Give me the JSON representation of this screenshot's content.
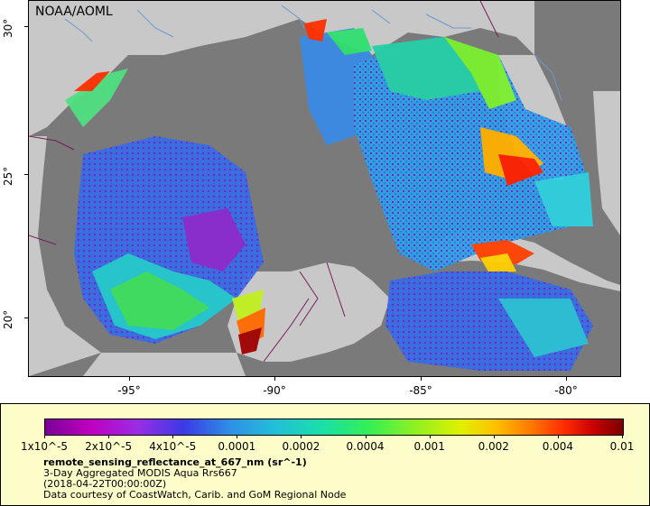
{
  "map": {
    "watermark": "NOAA/AOML",
    "lat_ticks": [
      "30°",
      "25°",
      "20°"
    ],
    "lon_ticks": [
      "-95°",
      "-90°",
      "-85°",
      "-80°"
    ],
    "colors": {
      "land": "#c8c8c8",
      "no_data": "#7a7a7a",
      "border": "#7a1a5a",
      "river": "#6a9ad0"
    }
  },
  "legend": {
    "colorbar_ticks": [
      "1x10^-5",
      "2x10^-5",
      "4x10^-5",
      "0.0001",
      "0.0002",
      "0.0004",
      "0.001",
      "0.002",
      "0.004",
      "0.01"
    ],
    "title": "remote_sensing_reflectance_at_667_nm (sr^-1)",
    "subtitle1": "3-Day Aggregated MODIS Aqua Rrs667",
    "subtitle2": "(2018-04-22T00:00:00Z)",
    "credit": "Data courtesy of CoastWatch, Carib. and GoM Regional Node"
  }
}
